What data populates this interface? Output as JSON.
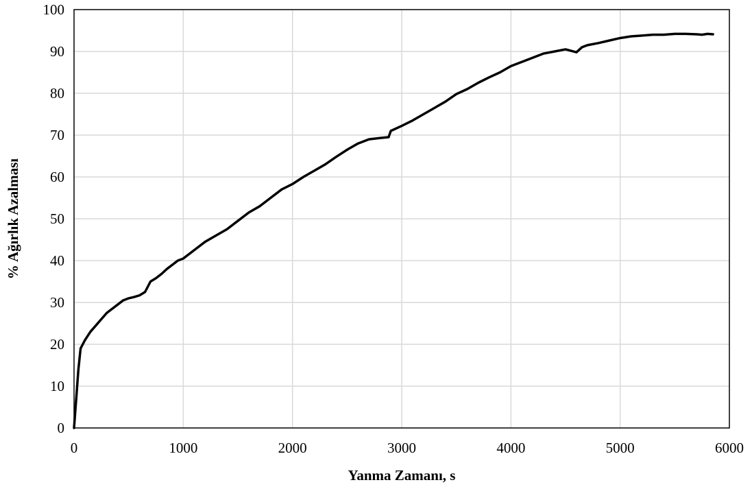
{
  "chart_data": {
    "type": "line",
    "title": "",
    "xlabel": "Yanma  Zamanı,  s",
    "ylabel": "% Ağırlık Azalması",
    "xlim": [
      0,
      6000
    ],
    "ylim": [
      0,
      100
    ],
    "x_ticks": [
      0,
      1000,
      2000,
      3000,
      4000,
      5000,
      6000
    ],
    "y_ticks": [
      0,
      10,
      20,
      30,
      40,
      50,
      60,
      70,
      80,
      90,
      100
    ],
    "grid": true,
    "legend": "none",
    "colors": {
      "line": "#000000",
      "grid": "#d9d9d9"
    },
    "series": [
      {
        "x": [
          0,
          20,
          40,
          60,
          80,
          100,
          150,
          200,
          250,
          300,
          350,
          400,
          450,
          500,
          550,
          600,
          650,
          700,
          750,
          800,
          850,
          900,
          950,
          1000,
          1100,
          1200,
          1300,
          1400,
          1500,
          1600,
          1700,
          1800,
          1900,
          2000,
          2100,
          2200,
          2300,
          2400,
          2500,
          2600,
          2700,
          2800,
          2880,
          2900,
          3000,
          3100,
          3200,
          3300,
          3400,
          3500,
          3600,
          3700,
          3800,
          3900,
          4000,
          4100,
          4200,
          4300,
          4400,
          4500,
          4600,
          4650,
          4700,
          4800,
          4900,
          5000,
          5100,
          5200,
          5300,
          5400,
          5500,
          5600,
          5700,
          5750,
          5800,
          5850
        ],
        "y": [
          0,
          7,
          14,
          19,
          20,
          21,
          23,
          24.5,
          26,
          27.5,
          28.5,
          29.5,
          30.5,
          31,
          31.3,
          31.7,
          32.5,
          35,
          35.8,
          36.8,
          38,
          39,
          40,
          40.5,
          42.5,
          44.5,
          46,
          47.5,
          49.5,
          51.5,
          53,
          55,
          57,
          58.3,
          60,
          61.5,
          63,
          64.8,
          66.5,
          68,
          69,
          69.3,
          69.5,
          71,
          72.2,
          73.5,
          75,
          76.5,
          78,
          79.8,
          81,
          82.5,
          83.8,
          85,
          86.5,
          87.5,
          88.5,
          89.5,
          90,
          90.5,
          89.8,
          91,
          91.5,
          92,
          92.6,
          93.2,
          93.6,
          93.8,
          94,
          94,
          94.2,
          94.2,
          94.1,
          94,
          94.2,
          94.1
        ]
      }
    ]
  }
}
